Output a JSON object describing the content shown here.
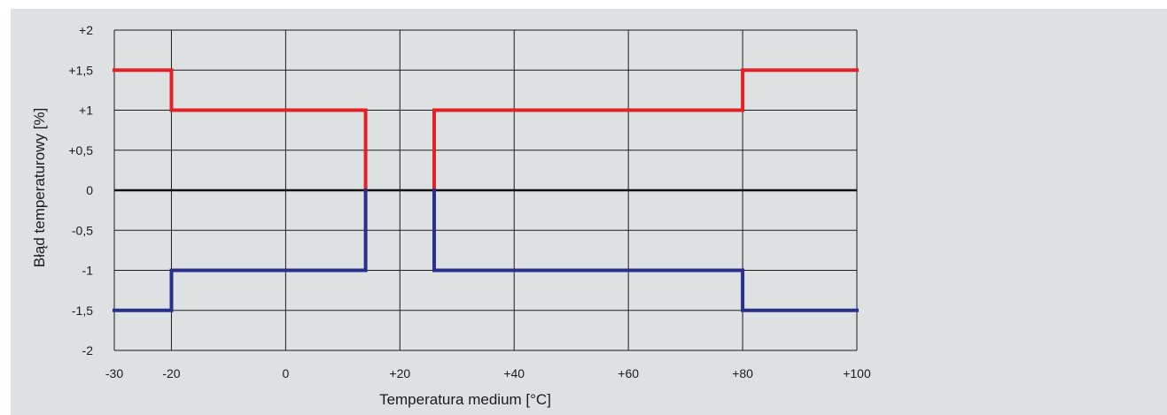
{
  "chart_data": {
    "type": "line",
    "title": "",
    "xlabel": "Temperatura medium [°C]",
    "ylabel": "Błąd temperaturowy [%]",
    "xlim": [
      -30,
      100
    ],
    "ylim": [
      -2,
      2
    ],
    "x_ticks": [
      -30,
      -20,
      0,
      20,
      40,
      60,
      80,
      100
    ],
    "x_tick_labels": [
      "-30",
      "-20",
      "0",
      "+20",
      "+40",
      "+60",
      "+80",
      "+100"
    ],
    "y_ticks": [
      2,
      1.5,
      1,
      0.5,
      0,
      -0.5,
      -1,
      -1.5,
      -2
    ],
    "y_tick_labels": [
      "+2",
      "+1,5",
      "+1",
      "+0,5",
      "0",
      "-0,5",
      "-1",
      "-1,5",
      "-2"
    ],
    "grid": true,
    "colors": {
      "background": "#dee1e2",
      "grid": "#1a1a1a",
      "zero_line": "#111111",
      "upper_series": "#e32228",
      "lower_series": "#2b2f8c"
    },
    "series": [
      {
        "key": "upper",
        "segments": [
          [
            [
              -30,
              1.5
            ],
            [
              -20,
              1.5
            ],
            [
              -20,
              1
            ],
            [
              14,
              1
            ],
            [
              14,
              0
            ]
          ],
          [
            [
              26,
              0
            ],
            [
              26,
              1
            ],
            [
              80,
              1
            ],
            [
              80,
              1.5
            ],
            [
              100,
              1.5
            ]
          ]
        ]
      },
      {
        "key": "lower",
        "segments": [
          [
            [
              -30,
              -1.5
            ],
            [
              -20,
              -1.5
            ],
            [
              -20,
              -1
            ],
            [
              14,
              -1
            ],
            [
              14,
              0
            ]
          ],
          [
            [
              26,
              0
            ],
            [
              26,
              -1
            ],
            [
              80,
              -1
            ],
            [
              80,
              -1.5
            ],
            [
              100,
              -1.5
            ]
          ]
        ]
      }
    ]
  }
}
